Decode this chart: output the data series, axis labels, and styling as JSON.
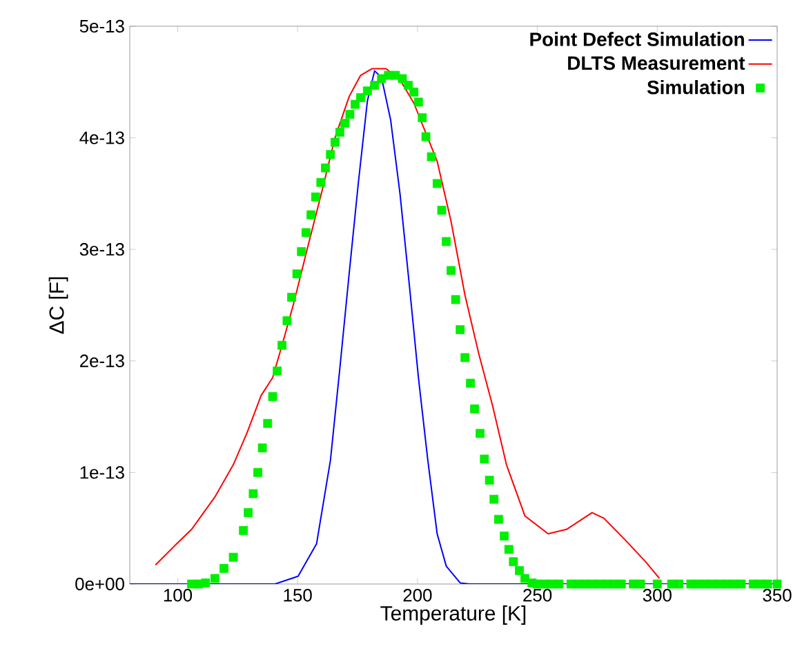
{
  "chart_data": {
    "type": "line",
    "xlabel": "Temperature [K]",
    "ylabel": "ΔC [F]",
    "xlim": [
      80,
      350
    ],
    "xticks": [
      100,
      150,
      200,
      250,
      300,
      350
    ],
    "ylim": [
      0,
      5e-13
    ],
    "yticks": [
      {
        "value": 0,
        "label": "0e+00"
      },
      {
        "value": 1e-13,
        "label": "1e-13"
      },
      {
        "value": 2e-13,
        "label": "2e-13"
      },
      {
        "value": 3e-13,
        "label": "3e-13"
      },
      {
        "value": 4e-13,
        "label": "4e-13"
      },
      {
        "value": 5e-13,
        "label": "5e-13"
      }
    ],
    "grid": false,
    "legend": "top right",
    "series": [
      {
        "name": "Point Defect Simulation",
        "color": "#0000ff",
        "marker": "none",
        "x": [
          80,
          140.6,
          150.2,
          157.9,
          163.7,
          167.6,
          171.4,
          175.3,
          179.1,
          182.1,
          185,
          188.8,
          192.7,
          196.6,
          200.4,
          204.3,
          208.2,
          212,
          217.8,
          221.7,
          350
        ],
        "values": [
          0,
          0,
          7e-15,
          3.6e-14,
          1.11e-13,
          1.93e-13,
          2.76e-13,
          3.59e-13,
          4.33e-13,
          4.6e-13,
          4.54e-13,
          4.16e-13,
          3.5e-13,
          2.68e-13,
          1.85e-13,
          1.11e-13,
          4.5e-14,
          1.6e-14,
          1e-15,
          0,
          0
        ]
      },
      {
        "name": "DLTS Measurement",
        "color": "#ff0000",
        "marker": "none",
        "x": [
          90.7,
          100,
          105.8,
          115.5,
          123.2,
          129,
          134.8,
          139.6,
          143.5,
          148.3,
          154.1,
          159.9,
          165.6,
          171.5,
          176.3,
          181.1,
          186.9,
          192.7,
          198.5,
          208.2,
          214,
          219.8,
          225.6,
          231.3,
          237.1,
          244.8,
          254.5,
          262.2,
          272.8,
          277.7,
          287.3,
          295.1,
          300.9
        ],
        "values": [
          1.7e-14,
          3.7e-14,
          4.9e-14,
          7.8e-14,
          1.07e-13,
          1.36e-13,
          1.69e-13,
          1.85e-13,
          2.14e-13,
          2.51e-13,
          3.01e-13,
          3.5e-13,
          4e-13,
          4.37e-13,
          4.56e-13,
          4.62e-13,
          4.62e-13,
          4.52e-13,
          4.31e-13,
          3.79e-13,
          3.25e-13,
          2.59e-13,
          2.06e-13,
          1.6e-13,
          1.07e-13,
          6.1e-14,
          4.5e-14,
          4.9e-14,
          6.4e-14,
          5.9e-14,
          3.8e-14,
          2e-14,
          5e-15
        ]
      },
      {
        "name": "Simulation",
        "type": "scatter",
        "color": "#00ee00",
        "marker": "square",
        "x": [
          105.8,
          108.7,
          111.6,
          115.5,
          119.3,
          123.2,
          127.4,
          129.4,
          131.5,
          133.4,
          135.3,
          137.5,
          139.6,
          141.5,
          143.5,
          145.6,
          147.5,
          149.7,
          151.6,
          153.5,
          155.6,
          157.5,
          159.7,
          161.6,
          163.7,
          165.6,
          167.6,
          169.7,
          171.8,
          174,
          176.3,
          179.1,
          182.1,
          185,
          187.9,
          190.8,
          193.7,
          196.2,
          198.5,
          200.4,
          202,
          203.5,
          205.8,
          208.2,
          210.1,
          212,
          214,
          215.9,
          217.8,
          219.8,
          222.1,
          223.8,
          226.1,
          227.9,
          230,
          231.9,
          233.8,
          236.2,
          238.1,
          240,
          242.5,
          244.8,
          247.7,
          250,
          253,
          256,
          259,
          264,
          267,
          270,
          273,
          276,
          279,
          282,
          285,
          290,
          293,
          300,
          306,
          309,
          314,
          317,
          320,
          323,
          326,
          329,
          332,
          335,
          340,
          343,
          346,
          350
        ],
        "values": [
          0,
          0,
          1e-15,
          5e-15,
          1.4e-14,
          2.4e-14,
          4.8e-14,
          6.4e-14,
          8.1e-14,
          1e-13,
          1.22e-13,
          1.44e-13,
          1.68e-13,
          1.91e-13,
          2.14e-13,
          2.36e-13,
          2.57e-13,
          2.78e-13,
          2.98e-13,
          3.15e-13,
          3.31e-13,
          3.47e-13,
          3.6e-13,
          3.73e-13,
          3.85e-13,
          3.96e-13,
          4.05e-13,
          4.13e-13,
          4.21e-13,
          4.3e-13,
          4.36e-13,
          4.42e-13,
          4.47e-13,
          4.53e-13,
          4.56e-13,
          4.56e-13,
          4.53e-13,
          4.47e-13,
          4.41e-13,
          4.32e-13,
          4.18e-13,
          4.01e-13,
          3.83e-13,
          3.59e-13,
          3.35e-13,
          3.07e-13,
          2.81e-13,
          2.55e-13,
          2.28e-13,
          2.03e-13,
          1.8e-13,
          1.57e-13,
          1.35e-13,
          1.12e-13,
          9.3e-14,
          7.6e-14,
          5.8e-14,
          4.3e-14,
          3.1e-14,
          2e-14,
          1.2e-14,
          5e-15,
          1e-15,
          0,
          0,
          0,
          0,
          0,
          0,
          0,
          0,
          0,
          0,
          0,
          0,
          0,
          0,
          0,
          0,
          0,
          0,
          0,
          0,
          0,
          0,
          0,
          0,
          0,
          0,
          0,
          0,
          0
        ]
      }
    ]
  }
}
